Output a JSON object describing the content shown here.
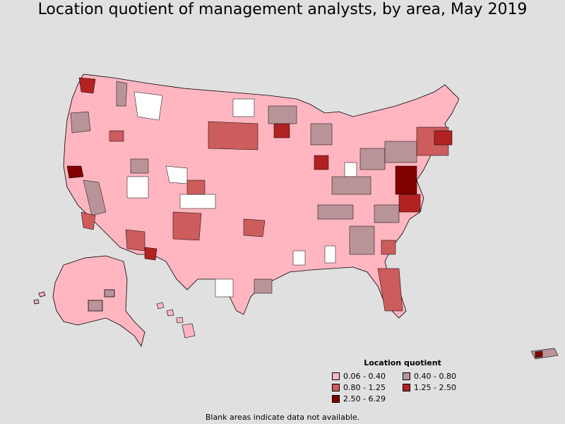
{
  "title": "Location quotient of management analysts, by area, May 2019",
  "legend": {
    "title": "Location quotient",
    "items": [
      {
        "label": "0.06 - 0.40",
        "color": "#ffb6c1"
      },
      {
        "label": "0.40 - 0.80",
        "color": "#b89498"
      },
      {
        "label": "0.80 - 1.25",
        "color": "#cd5c5c"
      },
      {
        "label": "1.25 - 2.50",
        "color": "#b22222"
      },
      {
        "label": "2.50 - 6.29",
        "color": "#800000"
      }
    ]
  },
  "footnote": "Blank areas indicate data not available.",
  "colors": {
    "background": "#e0e0e0",
    "no_data": "#ffffff",
    "border": "#000000"
  }
}
